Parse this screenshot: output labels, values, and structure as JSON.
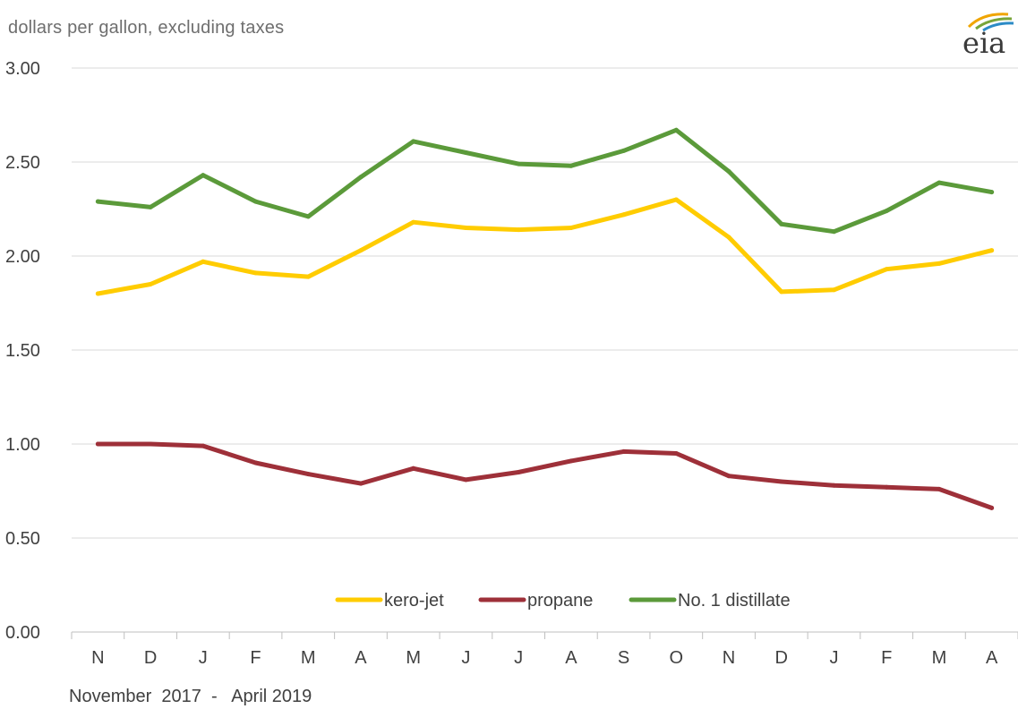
{
  "unit_label": "dollars per gallon, excluding taxes",
  "date_range": "November  2017  -   April 2019",
  "logo": {
    "text": "eia",
    "colors": [
      "#f0a500",
      "#78a539",
      "#2c8bc6"
    ]
  },
  "chart_data": {
    "type": "line",
    "title": "",
    "xlabel": "",
    "ylabel": "dollars per gallon, excluding taxes",
    "categories": [
      "N",
      "D",
      "J",
      "F",
      "M",
      "A",
      "M",
      "J",
      "J",
      "A",
      "S",
      "O",
      "N",
      "D",
      "J",
      "F",
      "M",
      "A"
    ],
    "ylim": [
      0,
      3
    ],
    "yticks": [
      "0.00",
      "0.50",
      "1.00",
      "1.50",
      "2.00",
      "2.50",
      "3.00"
    ],
    "grid": true,
    "legend_position": "bottom-center",
    "series": [
      {
        "name": "kero-jet",
        "color": "#ffcc00",
        "values": [
          1.8,
          1.85,
          1.97,
          1.91,
          1.89,
          2.03,
          2.18,
          2.15,
          2.14,
          2.15,
          2.22,
          2.3,
          2.1,
          1.81,
          1.82,
          1.93,
          1.96,
          2.03
        ]
      },
      {
        "name": "propane",
        "color": "#9e3039",
        "values": [
          1.0,
          1.0,
          0.99,
          0.9,
          0.84,
          0.79,
          0.87,
          0.81,
          0.85,
          0.91,
          0.96,
          0.95,
          0.83,
          0.8,
          0.78,
          0.77,
          0.76,
          0.66
        ]
      },
      {
        "name": "No. 1 distillate",
        "color": "#5b9a3a",
        "values": [
          2.29,
          2.26,
          2.43,
          2.29,
          2.21,
          2.42,
          2.61,
          2.55,
          2.49,
          2.48,
          2.56,
          2.67,
          2.45,
          2.17,
          2.13,
          2.24,
          2.39,
          2.34
        ]
      }
    ]
  }
}
